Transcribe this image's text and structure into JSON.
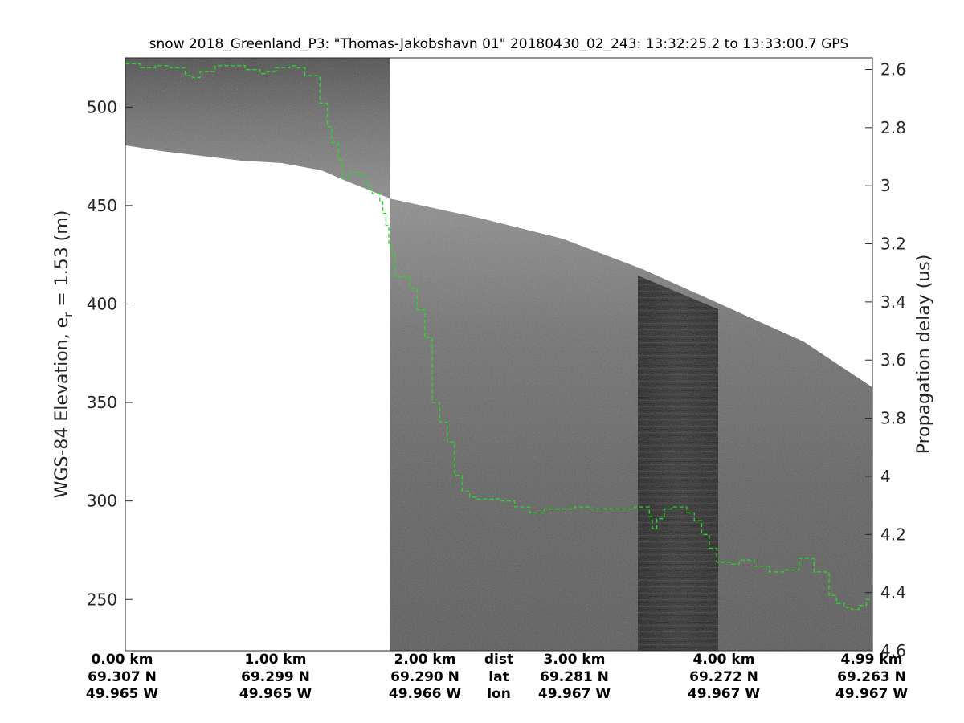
{
  "chart_data": {
    "type": "line",
    "title": "snow 2018_Greenland_P3: \"Thomas-Jakobshavn 01\"  20180430_02_243: 13:32:25.2 to 13:33:00.7 GPS",
    "ylabel_main": "WGS-84 Elevation, e",
    "ylabel_sub": "r",
    "ylabel_rest": " = 1.53 (m)",
    "y2label": "Propagation delay (us)",
    "xlim": [
      0,
      4.99
    ],
    "ylim": [
      224,
      525
    ],
    "y2lim": [
      2.56,
      4.6
    ],
    "y_ticks": [
      250,
      300,
      350,
      400,
      450,
      500
    ],
    "y_tick_labels": [
      "250",
      "300",
      "350",
      "400",
      "450",
      "500"
    ],
    "y2_ticks": [
      2.6,
      2.8,
      3.0,
      3.2,
      3.4,
      3.6,
      3.8,
      4.0,
      4.2,
      4.4,
      4.6
    ],
    "y2_tick_labels": [
      "2.6",
      "2.8",
      "3",
      "3.2",
      "3.4",
      "3.6",
      "3.8",
      "4",
      "4.2",
      "4.4",
      "4.6"
    ],
    "colors": {
      "surface_trace": "#22dd22",
      "radar_mid": "#7a7a7a",
      "radar_dark": "#2a2a2a"
    },
    "series": [
      {
        "x": [
          0.0,
          0.05,
          0.1,
          0.2,
          0.3,
          0.4,
          0.45,
          0.5,
          0.6,
          0.7,
          0.8,
          0.9,
          0.95,
          1.0,
          1.1,
          1.15,
          1.2,
          1.3,
          1.35,
          1.38,
          1.42,
          1.45,
          1.5,
          1.55,
          1.6,
          1.63,
          1.65,
          1.7,
          1.72,
          1.74,
          1.76,
          1.78,
          1.8,
          1.85,
          1.9,
          1.95,
          2.0,
          2.05,
          2.1,
          2.15,
          2.2,
          2.25,
          2.3,
          2.35,
          2.4,
          2.5,
          2.6,
          2.7,
          2.8,
          2.9,
          3.0,
          3.1,
          3.2,
          3.3,
          3.4,
          3.45,
          3.5,
          3.52,
          3.55,
          3.6,
          3.65,
          3.7,
          3.75,
          3.8,
          3.85,
          3.9,
          3.95,
          4.0,
          4.05,
          4.1,
          4.2,
          4.3,
          4.4,
          4.5,
          4.6,
          4.7,
          4.75,
          4.8,
          4.85,
          4.9,
          4.95,
          4.99
        ],
        "values": [
          522,
          522,
          520,
          521,
          520,
          516,
          515,
          518,
          521,
          521,
          519,
          517,
          518,
          520,
          521,
          520,
          516,
          502,
          490,
          482,
          473,
          464,
          467,
          466,
          461,
          458,
          456,
          452,
          446,
          440,
          430,
          425,
          414,
          414,
          408,
          397,
          383,
          350,
          340,
          330,
          313,
          305,
          302,
          301,
          301,
          300,
          297,
          294,
          296,
          296,
          297,
          296,
          296,
          296,
          297,
          297,
          292,
          286,
          291,
          296,
          297,
          297,
          294,
          290,
          283,
          276,
          269,
          269,
          268,
          270,
          267,
          264,
          265,
          271,
          264,
          252,
          248,
          246,
          245,
          247,
          250,
          250
        ]
      }
    ],
    "bottom_rows": {
      "dist": [
        "0.00 km",
        "1.00 km",
        "2.00 km",
        "3.00 km",
        "4.00 km",
        "4.99 km"
      ],
      "lat": [
        "69.307 N",
        "69.299 N",
        "69.290 N",
        "69.281 N",
        "69.272 N",
        "69.263 N"
      ],
      "lon": [
        "49.965 W",
        "49.965 W",
        "49.966 W",
        "49.967 W",
        "49.967 W",
        "49.967 W"
      ],
      "row_labels": [
        "dist",
        "lat",
        "lon"
      ]
    }
  }
}
